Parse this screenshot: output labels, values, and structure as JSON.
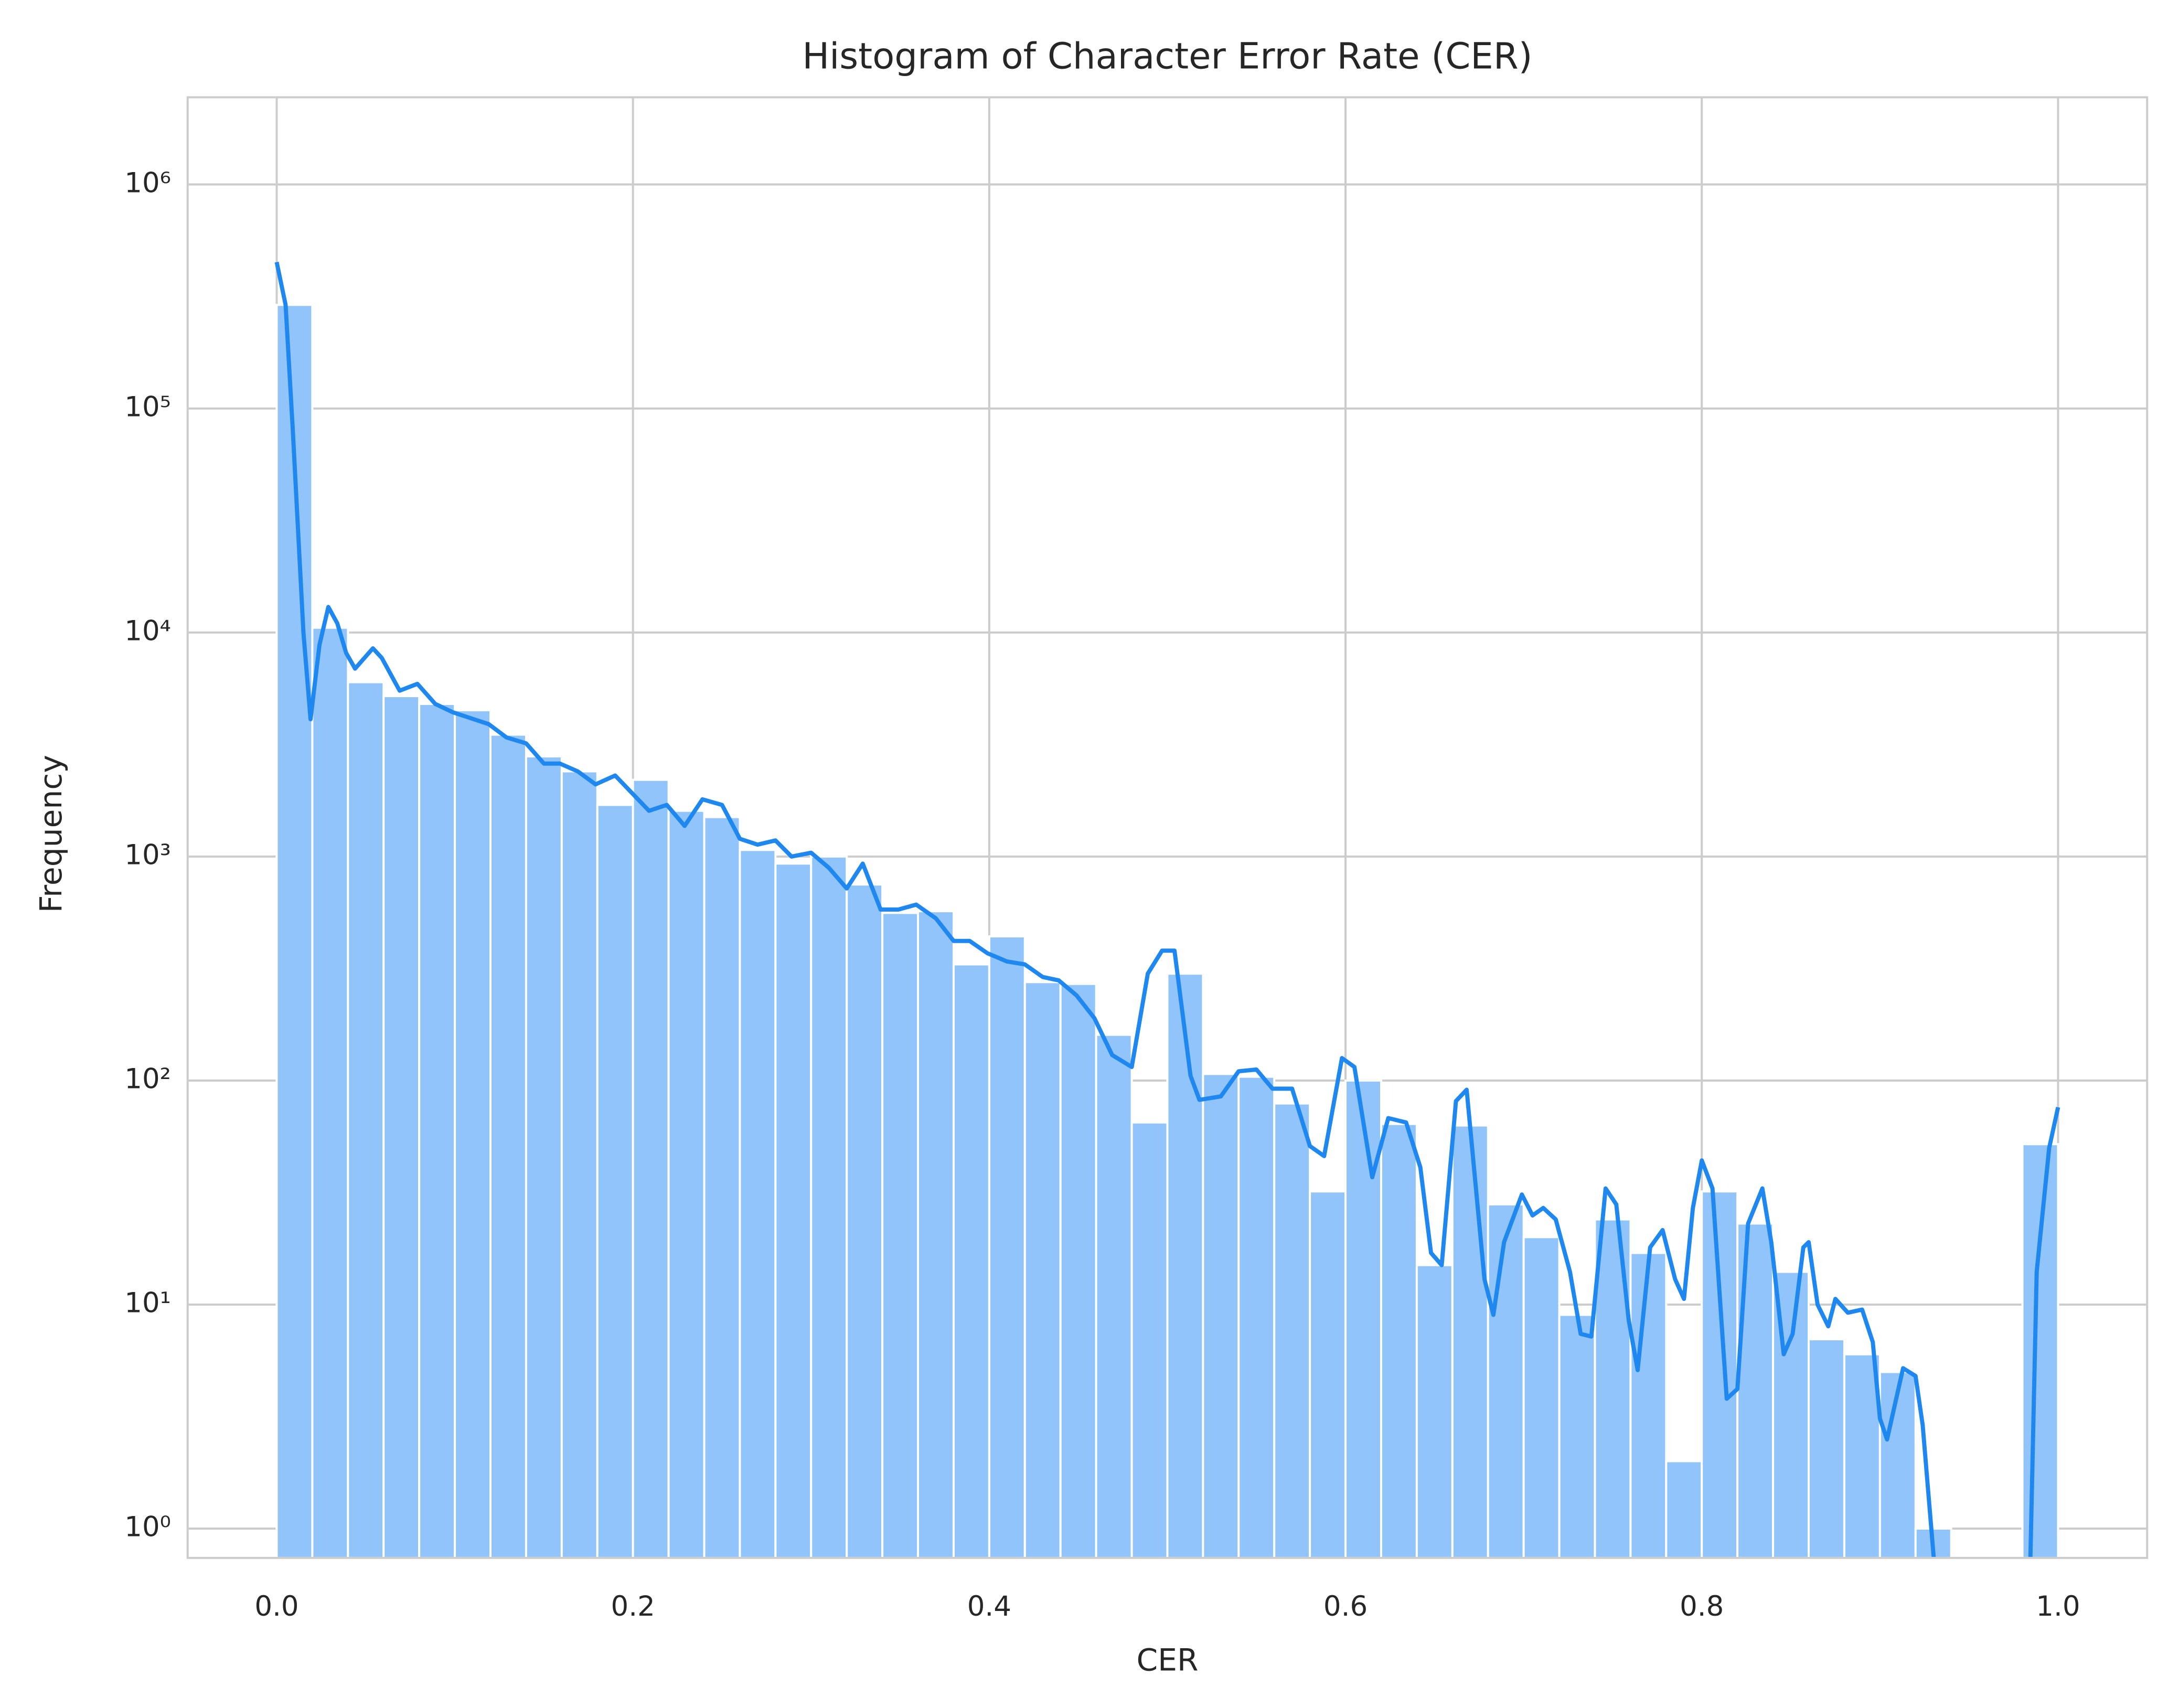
{
  "chart_data": {
    "type": "histogram",
    "title": "Histogram of Character Error Rate (CER)",
    "xlabel": "CER",
    "ylabel": "Frequency",
    "bins": [
      0,
      0.02,
      0.04,
      0.06,
      0.08,
      0.1,
      0.12,
      0.14,
      0.16,
      0.18,
      0.2,
      0.22,
      0.24,
      0.26,
      0.28,
      0.3,
      0.32,
      0.34,
      0.36,
      0.38,
      0.4,
      0.42,
      0.44,
      0.46,
      0.48,
      0.5,
      0.52,
      0.54,
      0.56,
      0.58,
      0.6,
      0.62,
      0.64,
      0.66,
      0.68,
      0.7,
      0.72,
      0.74,
      0.76,
      0.78,
      0.8,
      0.82,
      0.84,
      0.86,
      0.88,
      0.9,
      0.92,
      0.94,
      0.96,
      0.98,
      1.0
    ],
    "values": [
      290000,
      10500,
      6000,
      5200,
      4800,
      4500,
      3500,
      2800,
      2400,
      1700,
      2200,
      1600,
      1500,
      1070,
      930,
      1000,
      750,
      560,
      570,
      330,
      440,
      275,
      270,
      160,
      65,
      300,
      107,
      104,
      79,
      32,
      100,
      64,
      15,
      63,
      28,
      20,
      9,
      24,
      17,
      2,
      32,
      23,
      14,
      7,
      6,
      5,
      1,
      0,
      0,
      52
    ],
    "color": "#90c4fb",
    "kde": {
      "color": "#1e88f0",
      "x": [
        0,
        0.005,
        0.009,
        0.015,
        0.019,
        0.024,
        0.029,
        0.034,
        0.039,
        0.044,
        0.054,
        0.059,
        0.069,
        0.079,
        0.089,
        0.099,
        0.119,
        0.129,
        0.14,
        0.15,
        0.159,
        0.169,
        0.179,
        0.19,
        0.2,
        0.209,
        0.219,
        0.229,
        0.239,
        0.25,
        0.26,
        0.27,
        0.28,
        0.289,
        0.3,
        0.31,
        0.32,
        0.329,
        0.339,
        0.349,
        0.359,
        0.37,
        0.38,
        0.389,
        0.399,
        0.41,
        0.42,
        0.43,
        0.439,
        0.449,
        0.459,
        0.469,
        0.48,
        0.489,
        0.497,
        0.504,
        0.513,
        0.518,
        0.53,
        0.54,
        0.55,
        0.559,
        0.57,
        0.58,
        0.588,
        0.598,
        0.605,
        0.615,
        0.624,
        0.634,
        0.642,
        0.648,
        0.654,
        0.662,
        0.668,
        0.678,
        0.683,
        0.689,
        0.699,
        0.705,
        0.711,
        0.718,
        0.726,
        0.732,
        0.738,
        0.746,
        0.752,
        0.759,
        0.764,
        0.771,
        0.778,
        0.785,
        0.79,
        0.795,
        0.8,
        0.806,
        0.814,
        0.82,
        0.826,
        0.834,
        0.839,
        0.846,
        0.851,
        0.857,
        0.86,
        0.865,
        0.871,
        0.875,
        0.882,
        0.89,
        0.896,
        0.9,
        0.904,
        0.913,
        0.92,
        0.924,
        0.932,
        null,
        0.984,
        0.988,
        0.995,
        1.0
      ],
      "y": [
        450000,
        290000,
        81000,
        10000,
        4100,
        8800,
        13000,
        11000,
        8100,
        6900,
        8500,
        7700,
        5500,
        5900,
        4800,
        4400,
        3900,
        3400,
        3200,
        2600,
        2600,
        2400,
        2100,
        2300,
        1900,
        1600,
        1700,
        1370,
        1800,
        1700,
        1200,
        1130,
        1180,
        1000,
        1040,
        890,
        720,
        930,
        580,
        580,
        610,
        530,
        420,
        420,
        370,
        340,
        330,
        290,
        280,
        240,
        190,
        130,
        115,
        300,
        380,
        380,
        105,
        82,
        85,
        110,
        112,
        92,
        92,
        51,
        46,
        126,
        115,
        37,
        68,
        65,
        41,
        17,
        15,
        81,
        91,
        13,
        9,
        19,
        31,
        25,
        27,
        24,
        14,
        7.4,
        7.2,
        33,
        28,
        8.5,
        5.1,
        18,
        21.5,
        13,
        10.6,
        27,
        44,
        33,
        3.8,
        4.2,
        23,
        33,
        19,
        6,
        7.4,
        18,
        19,
        10,
        8,
        10.6,
        9.2,
        9.5,
        6.8,
        3.1,
        2.5,
        5.2,
        4.8,
        2.9,
        0.5,
        null,
        0.5,
        14,
        50,
        76
      ]
    },
    "xlim": [
      -0.05,
      1.05
    ],
    "xticks": [
      {
        "value": 0,
        "label": "0.0"
      },
      0.2,
      0.4,
      0.6,
      0.8,
      {
        "value": 1,
        "label": "1.0"
      }
    ],
    "ylim": [
      0.74,
      2450000
    ],
    "log_y": true,
    "yticks": [
      {
        "value": 1,
        "label": "10⁰"
      },
      {
        "value": 10,
        "label": "10¹"
      },
      {
        "value": 100,
        "label": "10²"
      },
      {
        "value": 1000,
        "label": "10³"
      },
      {
        "value": 10000,
        "label": "10⁴"
      },
      {
        "value": 100000,
        "label": "10⁵"
      },
      {
        "value": 1000000,
        "label": "10⁶"
      }
    ],
    "grid": true
  }
}
